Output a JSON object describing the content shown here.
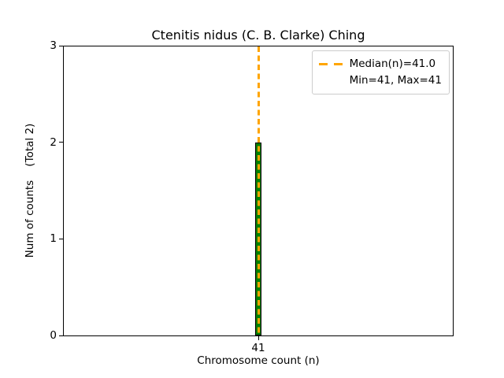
{
  "chart_data": {
    "type": "bar",
    "title": "Ctenitis nidus (C. B. Clarke) Ching",
    "xlabel": "Chromosome count (n)",
    "ylabel": "Num of counts    (Total 2)",
    "categories": [
      "41"
    ],
    "x": [
      41
    ],
    "values": [
      2
    ],
    "total_counts": 2,
    "ylim": [
      0,
      3
    ],
    "yticks": [
      0,
      1,
      2,
      3
    ],
    "xticks": [
      41
    ],
    "grid": false,
    "bar_color": "#008000",
    "bar_edge_color": "#000000",
    "median_line": {
      "x": 41,
      "value": 41.0,
      "orientation": "vertical",
      "style": "dashed",
      "color": "#FFA500"
    },
    "stats": {
      "median": 41.0,
      "min": 41,
      "max": 41
    },
    "legend": {
      "position": "upper right",
      "entries": [
        "Median(n)=41.0",
        "Min=41, Max=41"
      ]
    }
  }
}
